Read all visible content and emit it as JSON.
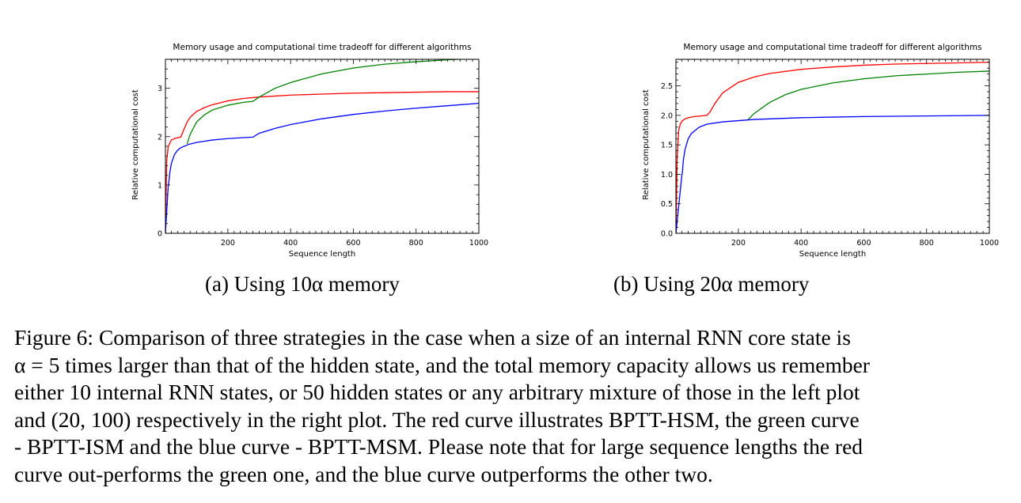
{
  "chart_data": [
    {
      "type": "line",
      "title": "Memory usage and computational time tradeoff for different algorithms",
      "xlabel": "Sequence length",
      "ylabel": "Relative computational cost",
      "xlim": [
        1,
        1000
      ],
      "ylim": [
        0,
        3.6
      ],
      "xticks": [
        "200",
        "400",
        "600",
        "800",
        "1000"
      ],
      "yticks": [
        "0",
        "1",
        "2",
        "3"
      ],
      "grid": false,
      "subcaption": "(a) Using 10α memory",
      "series": [
        {
          "color": "#ff0000",
          "x": [
            1,
            5,
            10,
            20,
            30,
            40,
            50,
            60,
            70,
            80,
            100,
            125,
            150,
            200,
            250,
            300,
            400,
            500,
            600,
            700,
            800,
            900,
            1000
          ],
          "y": [
            0,
            1.5,
            1.8,
            1.93,
            1.96,
            1.98,
            1.99,
            2.15,
            2.3,
            2.4,
            2.52,
            2.6,
            2.66,
            2.74,
            2.79,
            2.82,
            2.86,
            2.88,
            2.9,
            2.91,
            2.92,
            2.93,
            2.93
          ]
        },
        {
          "color": "#008000",
          "x": [
            70,
            80,
            100,
            125,
            150,
            200,
            250,
            280,
            300,
            350,
            400,
            500,
            600,
            700,
            800,
            900,
            1000
          ],
          "y": [
            1.85,
            2.05,
            2.3,
            2.45,
            2.55,
            2.65,
            2.71,
            2.73,
            2.82,
            3.0,
            3.12,
            3.3,
            3.42,
            3.5,
            3.55,
            3.59,
            3.62
          ]
        },
        {
          "color": "#0000ff",
          "x": [
            1,
            10,
            11,
            15,
            20,
            30,
            40,
            50,
            75,
            100,
            150,
            200,
            250,
            280,
            300,
            350,
            400,
            500,
            600,
            700,
            800,
            900,
            1000
          ],
          "y": [
            0,
            0.99,
            1.0,
            1.25,
            1.45,
            1.63,
            1.72,
            1.77,
            1.84,
            1.88,
            1.93,
            1.96,
            1.98,
            1.99,
            2.07,
            2.17,
            2.25,
            2.37,
            2.46,
            2.53,
            2.59,
            2.64,
            2.69
          ]
        }
      ]
    },
    {
      "type": "line",
      "title": "Memory usage and computational time tradeoff for different algorithms",
      "xlabel": "Sequence length",
      "ylabel": "Relative computational cost",
      "xlim": [
        1,
        1000
      ],
      "ylim": [
        0,
        2.95
      ],
      "xticks": [
        "200",
        "400",
        "600",
        "800",
        "1000"
      ],
      "yticks": [
        "0.0",
        "0.5",
        "1.0",
        "1.5",
        "2.0",
        "2.5"
      ],
      "grid": false,
      "subcaption": "(b) Using 20α memory",
      "series": [
        {
          "color": "#ff0000",
          "x": [
            1,
            5,
            10,
            15,
            20,
            30,
            40,
            60,
            80,
            100,
            110,
            125,
            150,
            200,
            250,
            300,
            400,
            500,
            600,
            700,
            800,
            900,
            1000
          ],
          "y": [
            0,
            1.3,
            1.75,
            1.85,
            1.9,
            1.94,
            1.96,
            1.98,
            1.99,
            2.0,
            2.06,
            2.2,
            2.38,
            2.56,
            2.65,
            2.71,
            2.78,
            2.82,
            2.85,
            2.87,
            2.88,
            2.89,
            2.9
          ]
        },
        {
          "color": "#008000",
          "x": [
            230,
            250,
            300,
            350,
            400,
            500,
            600,
            700,
            800,
            900,
            1000
          ],
          "y": [
            1.92,
            2.03,
            2.22,
            2.35,
            2.44,
            2.55,
            2.62,
            2.67,
            2.7,
            2.73,
            2.75
          ]
        },
        {
          "color": "#0000ff",
          "x": [
            1,
            20,
            21,
            25,
            30,
            40,
            50,
            75,
            100,
            150,
            200,
            250,
            300,
            400,
            500,
            600,
            700,
            800,
            900,
            1000
          ],
          "y": [
            0,
            0.99,
            1.0,
            1.25,
            1.42,
            1.6,
            1.69,
            1.8,
            1.85,
            1.89,
            1.91,
            1.93,
            1.94,
            1.96,
            1.97,
            1.98,
            1.985,
            1.99,
            1.995,
            2.0
          ]
        }
      ]
    }
  ],
  "caption_lines": [
    "Figure 6: Comparison of three strategies in the case when a size of an internal RNN core state is",
    "α = 5 times larger than that of the hidden state, and the total memory capacity allows us remember",
    "either 10 internal RNN states, or 50 hidden states or any arbitrary mixture of those in the left plot",
    "and (20, 100) respectively in the right plot. The red curve illustrates BPTT-HSM, the green curve",
    "- BPTT-ISM and the blue curve - BPTT-MSM. Please note that for large sequence lengths the red",
    "curve out-performs the green one, and the blue curve outperforms the other two."
  ]
}
